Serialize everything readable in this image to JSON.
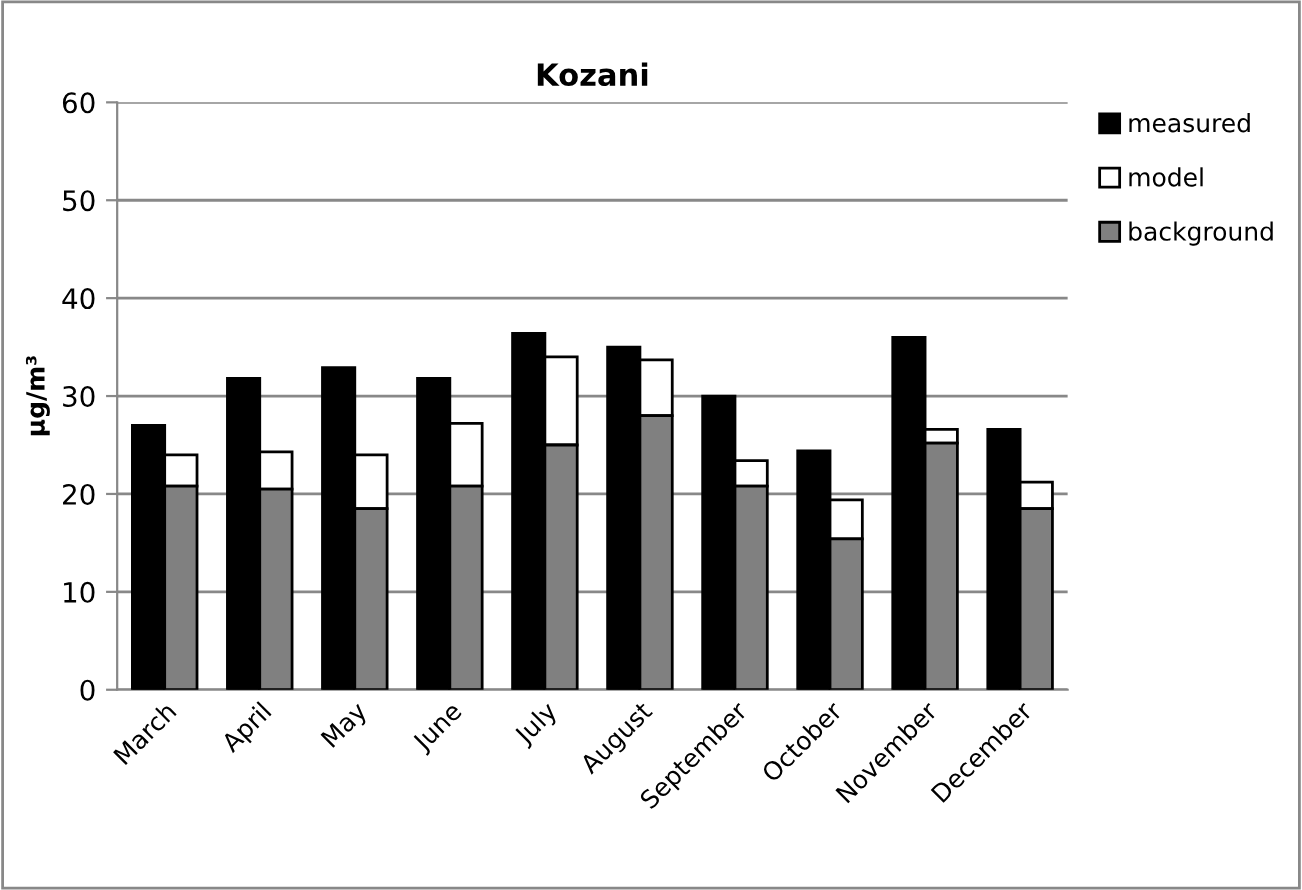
{
  "chart_data": {
    "type": "bar",
    "title": "Kozani",
    "ylabel": "µg/m³",
    "categories": [
      "March",
      "April",
      "May",
      "June",
      "July",
      "August",
      "September",
      "October",
      "November",
      "December"
    ],
    "series": [
      {
        "name": "measured",
        "color": "#000000",
        "values": [
          27,
          31.8,
          32.9,
          31.8,
          36.4,
          35,
          30,
          24.4,
          36,
          26.6
        ]
      },
      {
        "name": "model",
        "color": "#ffffff",
        "values": [
          3.2,
          3.8,
          5.5,
          6.4,
          9.0,
          5.7,
          2.6,
          4.0,
          1.4,
          2.7
        ],
        "base": [
          20.8,
          20.5,
          18.5,
          20.8,
          25,
          28,
          20.8,
          15.4,
          25.2,
          18.5
        ]
      },
      {
        "name": "background",
        "color": "#808080",
        "values": [
          20.8,
          20.5,
          18.5,
          20.8,
          25,
          28,
          20.8,
          15.4,
          25.2,
          18.5
        ]
      }
    ],
    "ylim": [
      0,
      60
    ],
    "yticks": [
      0,
      10,
      20,
      30,
      40,
      50,
      60
    ],
    "grid": "y",
    "legend": "right"
  }
}
